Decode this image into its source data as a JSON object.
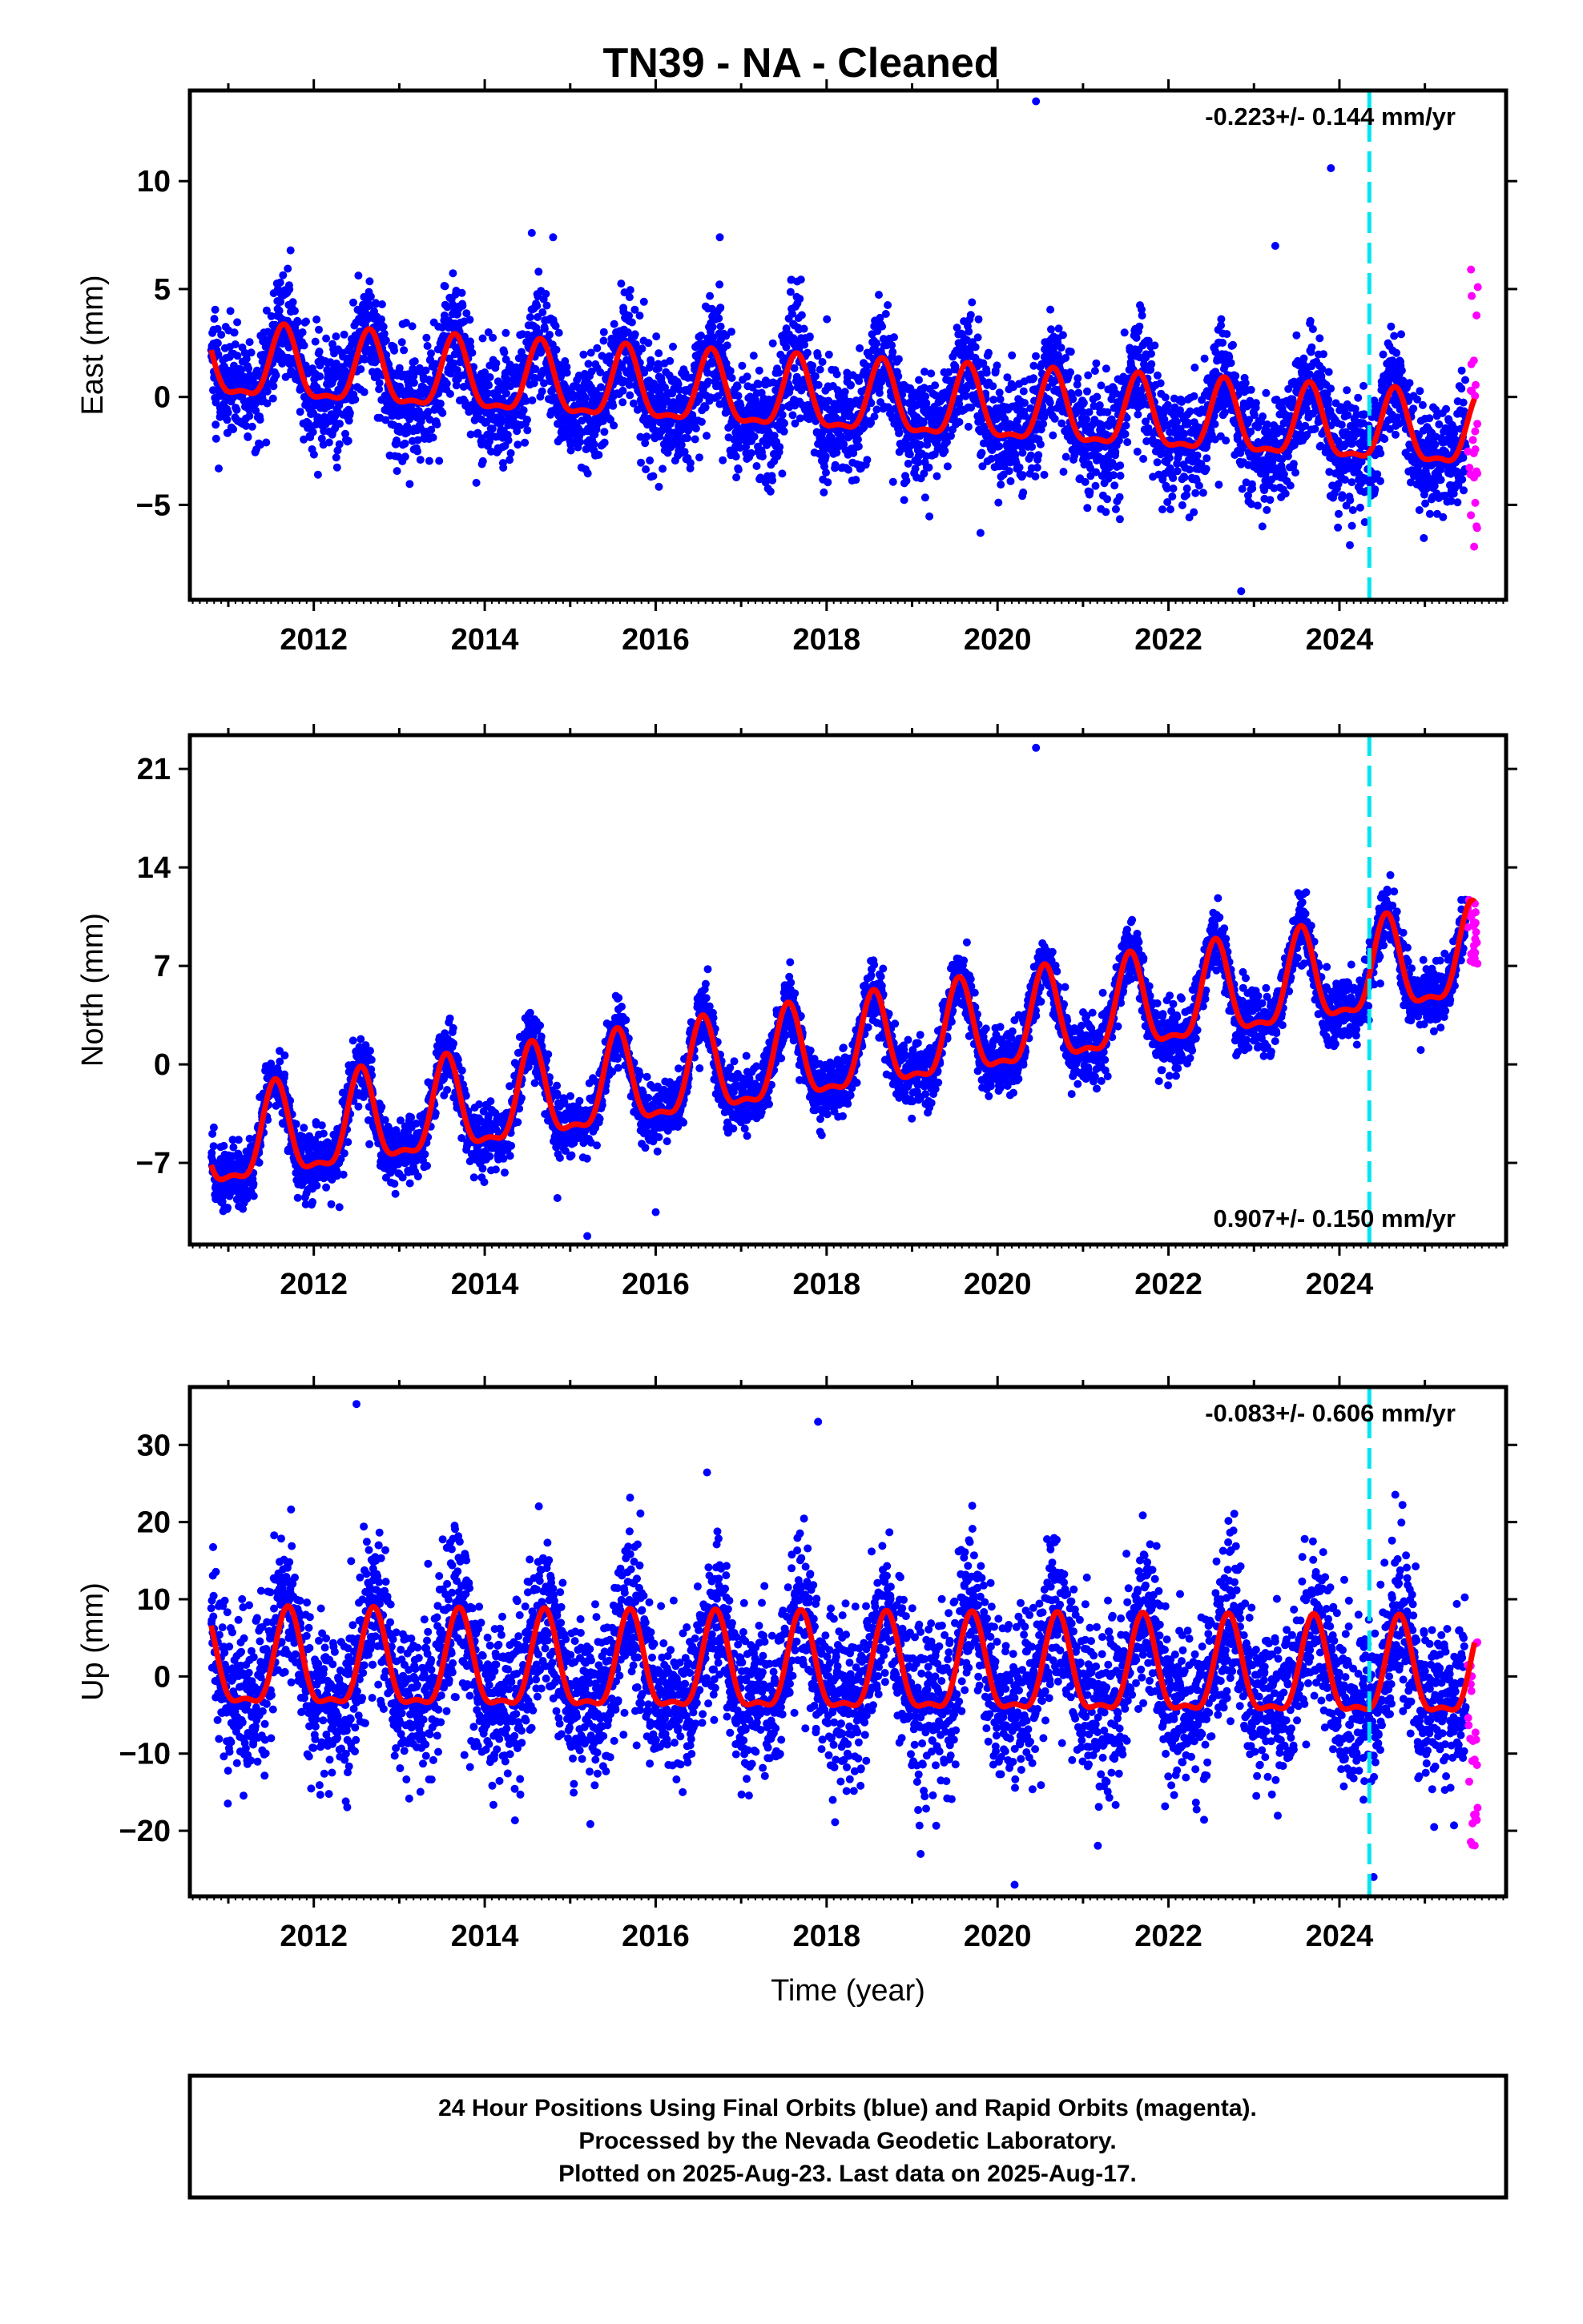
{
  "title": "TN39  - NA - Cleaned",
  "chart_data": [
    {
      "type": "scatter",
      "component": "East",
      "ylabel": "East (mm)",
      "xlabel": "",
      "rate_text": "-0.223+/- 0.144 mm/yr",
      "rate_position": "top-right",
      "xlim": [
        2010.55,
        2025.95
      ],
      "ylim": [
        -9.4,
        14.2
      ],
      "yticks": [
        -5,
        0,
        5,
        10
      ],
      "xticks": [
        2012,
        2014,
        2016,
        2018,
        2020,
        2022,
        2024
      ],
      "equipment_change_year": 2024.35,
      "series": [
        {
          "name": "Final Orbits (blue)",
          "color": "#0000ff",
          "start": 2010.8,
          "end": 2025.48,
          "intercept_at_2018": -0.2,
          "trend_mm_per_yr": -0.223,
          "annual_amplitude": 1.6,
          "annual_peak": 2011.65,
          "scatter_sd": 1.3
        },
        {
          "name": "Rapid Orbits (magenta)",
          "color": "#ff00ff",
          "start": 2025.5,
          "end": 2025.62,
          "y_range": [
            -7.0,
            6.2
          ]
        }
      ],
      "model_color": "#ff0000",
      "outliers": [
        [
          2020.45,
          13.7
        ],
        [
          2023.9,
          10.6
        ],
        [
          2014.55,
          7.6
        ],
        [
          2014.8,
          7.4
        ],
        [
          2016.75,
          7.4
        ],
        [
          2023.25,
          7.0
        ],
        [
          2022.85,
          -9.0
        ],
        [
          2019.8,
          -6.3
        ]
      ]
    },
    {
      "type": "scatter",
      "component": "North",
      "ylabel": "North (mm)",
      "xlabel": "",
      "rate_text": "0.907+/- 0.150 mm/yr",
      "rate_position": "bottom-right",
      "xlim": [
        2010.55,
        2025.95
      ],
      "ylim": [
        -12.8,
        23.4
      ],
      "yticks": [
        -7,
        0,
        7,
        14,
        21
      ],
      "xticks": [
        2012,
        2014,
        2016,
        2018,
        2020,
        2022,
        2024
      ],
      "equipment_change_year": 2024.35,
      "series": [
        {
          "name": "Final Orbits (blue)",
          "color": "#0000ff",
          "start": 2010.8,
          "end": 2025.48,
          "intercept_at_2018": 0.5,
          "trend_mm_per_yr": 0.907,
          "annual_amplitude": 3.2,
          "annual_peak": 2011.55,
          "scatter_sd": 1.1
        },
        {
          "name": "Rapid Orbits (magenta)",
          "color": "#ff00ff",
          "start": 2025.5,
          "end": 2025.62,
          "y_range": [
            7.0,
            12.0
          ]
        }
      ],
      "model_color": "#ff0000",
      "outliers": [
        [
          2020.45,
          22.5
        ],
        [
          2015.2,
          -12.2
        ],
        [
          2014.85,
          -9.5
        ],
        [
          2016.0,
          -10.5
        ]
      ]
    },
    {
      "type": "scatter",
      "component": "Up",
      "ylabel": "Up (mm)",
      "xlabel": "Time (year)",
      "rate_text": "-0.083+/- 0.606 mm/yr",
      "rate_position": "top-right",
      "xlim": [
        2010.55,
        2025.95
      ],
      "ylim": [
        -28.5,
        37.5
      ],
      "yticks": [
        -20,
        -10,
        0,
        10,
        20,
        30
      ],
      "xticks": [
        2012,
        2014,
        2016,
        2018,
        2020,
        2022,
        2024
      ],
      "equipment_change_year": 2024.35,
      "series": [
        {
          "name": "Final Orbits (blue)",
          "color": "#0000ff",
          "start": 2010.8,
          "end": 2025.48,
          "intercept_at_2018": 0.5,
          "trend_mm_per_yr": -0.083,
          "annual_amplitude": 6.0,
          "annual_peak": 2011.7,
          "scatter_sd": 5.2
        },
        {
          "name": "Rapid Orbits (magenta)",
          "color": "#ff00ff",
          "start": 2025.5,
          "end": 2025.62,
          "y_range": [
            -22.0,
            4.5
          ]
        }
      ],
      "model_color": "#ff0000",
      "outliers": [
        [
          2012.5,
          35.3
        ],
        [
          2017.9,
          33.0
        ],
        [
          2020.2,
          -27.0
        ],
        [
          2024.4,
          -26.0
        ],
        [
          2019.1,
          -23.0
        ]
      ]
    }
  ],
  "footer": {
    "line1": "24 Hour Positions Using Final Orbits (blue) and Rapid Orbits (magenta).",
    "line2": "Processed by the Nevada Geodetic Laboratory.",
    "line3": "Plotted on 2025-Aug-23. Last data on 2025-Aug-17."
  }
}
